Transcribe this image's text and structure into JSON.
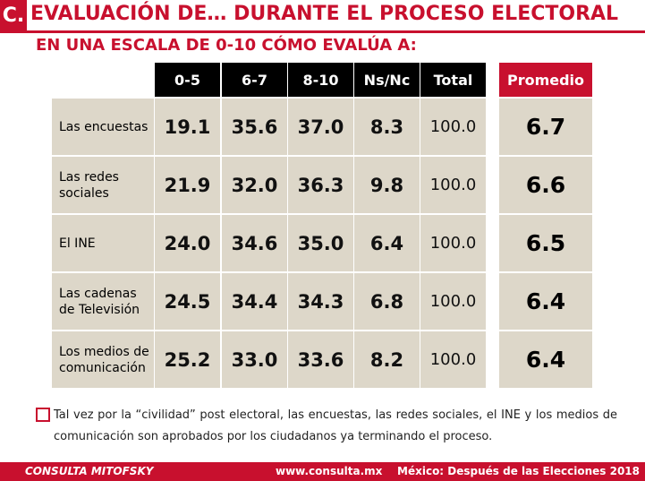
{
  "header": {
    "letter": "C.",
    "title": "EVALUACIÓN DE… DURANTE EL PROCESO ELECTORAL",
    "subtitle": "EN UNA ESCALA DE 0-10 CÓMO EVALÚA A:"
  },
  "table": {
    "columns": [
      "0-5",
      "6-7",
      "8-10",
      "Ns/Nc",
      "Total"
    ],
    "average_header": "Promedio",
    "rows": [
      {
        "label": "Las encuestas",
        "cells": [
          "19.1",
          "35.6",
          "37.0",
          "8.3",
          "100.0"
        ],
        "average": "6.7"
      },
      {
        "label": "Las redes sociales",
        "cells": [
          "21.9",
          "32.0",
          "36.3",
          "9.8",
          "100.0"
        ],
        "average": "6.6"
      },
      {
        "label": "El INE",
        "cells": [
          "24.0",
          "34.6",
          "35.0",
          "6.4",
          "100.0"
        ],
        "average": "6.5"
      },
      {
        "label": "Las cadenas de Televisión",
        "cells": [
          "24.5",
          "34.4",
          "34.3",
          "6.8",
          "100.0"
        ],
        "average": "6.4"
      },
      {
        "label": "Los medios de comunicación",
        "cells": [
          "25.2",
          "33.0",
          "33.6",
          "8.2",
          "100.0"
        ],
        "average": "6.4"
      }
    ]
  },
  "note": "Tal vez por la “civilidad” post electoral, las encuestas, las redes sociales, el INE y los medios de comunicación son aprobados por los ciudadanos ya terminando el proceso.",
  "footer": {
    "brand": "CONSULTA MITOFSKY",
    "url": "www.consulta.mx",
    "study": "México: Después de las Elecciones 2018"
  }
}
